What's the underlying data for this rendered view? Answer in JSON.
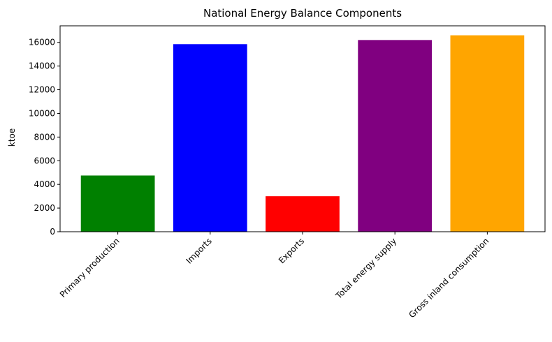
{
  "chart_data": {
    "type": "bar",
    "title": "National Energy Balance Components",
    "xlabel": "",
    "ylabel": "ktoe",
    "categories": [
      "Primary production",
      "Imports",
      "Exports",
      "Total energy supply",
      "Gross inland consumption"
    ],
    "values": [
      4750,
      15850,
      3000,
      16200,
      16600
    ],
    "colors": [
      "#008000",
      "#0000ff",
      "#ff0000",
      "#800080",
      "#ffa500"
    ],
    "ylim": [
      0,
      17400
    ],
    "yticks": [
      0,
      2000,
      4000,
      6000,
      8000,
      10000,
      12000,
      14000,
      16000
    ],
    "grid": false,
    "legend": "none"
  }
}
